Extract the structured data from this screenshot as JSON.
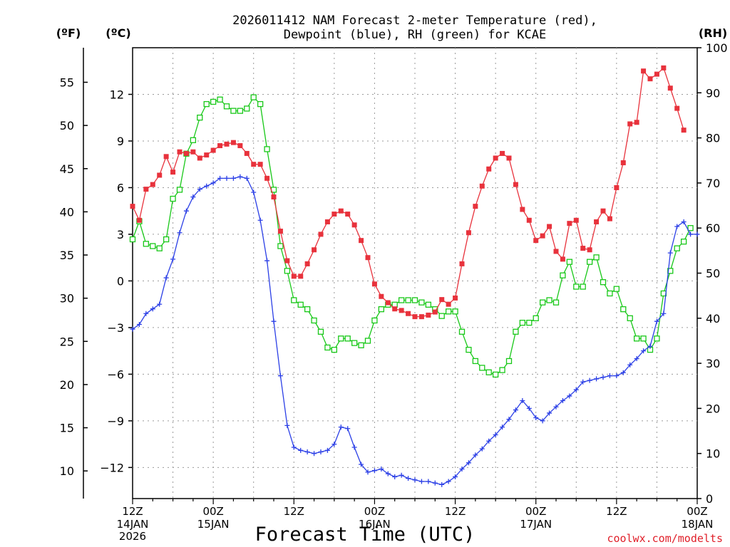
{
  "chart_data": {
    "type": "line",
    "title_line1": "2026011412 NAM Forecast 2-meter Temperature (red),",
    "title_line2": "Dewpoint (blue), RH (green) for KCAE",
    "xlabel": "Forecast Time (UTC)",
    "credit": "coolwx.com/modelts",
    "unit_left_f": "(ºF)",
    "unit_left_c": "(ºC)",
    "unit_right_rh": "(RH)",
    "xlim": [
      0,
      84
    ],
    "ylim_c": [
      -14,
      15
    ],
    "ylim_f": [
      6.8,
      59
    ],
    "ylim_rh": [
      0,
      100
    ],
    "x_ticks": [
      {
        "x": 0,
        "time": "12Z",
        "day": "14JAN",
        "year": "2026"
      },
      {
        "x": 12,
        "time": "00Z",
        "day": "15JAN",
        "year": ""
      },
      {
        "x": 24,
        "time": "12Z",
        "day": "",
        "year": ""
      },
      {
        "x": 36,
        "time": "00Z",
        "day": "16JAN",
        "year": ""
      },
      {
        "x": 48,
        "time": "12Z",
        "day": "",
        "year": ""
      },
      {
        "x": 60,
        "time": "00Z",
        "day": "17JAN",
        "year": ""
      },
      {
        "x": 72,
        "time": "12Z",
        "day": "",
        "year": ""
      },
      {
        "x": 84,
        "time": "00Z",
        "day": "18JAN",
        "year": ""
      }
    ],
    "c_ticks": [
      12,
      9,
      6,
      3,
      0,
      -3,
      -6,
      -9,
      -12
    ],
    "c_tick_labels": [
      "12",
      "9",
      "6",
      "3",
      "0",
      "−3",
      "−6",
      "−9",
      "−12"
    ],
    "f_ticks": [
      55,
      50,
      45,
      40,
      35,
      30,
      25,
      20,
      15,
      10
    ],
    "f_tick_labels": [
      "55",
      "50",
      "45",
      "40",
      "35",
      "30",
      "25",
      "20",
      "15",
      "10"
    ],
    "rh_ticks": [
      100,
      90,
      80,
      70,
      60,
      50,
      40,
      30,
      20,
      10,
      0
    ],
    "rh_tick_labels": [
      "100",
      "90",
      "80",
      "70",
      "60",
      "50",
      "40",
      "30",
      "20",
      "10",
      "0"
    ],
    "colors": {
      "temperature": "#e8323c",
      "dewpoint": "#2b3fe6",
      "rh": "#18c818",
      "grid": "#9a9a9a",
      "axis": "#000000"
    },
    "series": [
      {
        "name": "Temperature (°C)",
        "axis": "c",
        "marker": "filled-square",
        "points": [
          [
            0,
            4.8
          ],
          [
            1,
            3.9
          ],
          [
            2,
            5.9
          ],
          [
            3,
            6.2
          ],
          [
            4,
            6.8
          ],
          [
            5,
            8.0
          ],
          [
            6,
            7.0
          ],
          [
            7,
            8.3
          ],
          [
            8,
            8.2
          ],
          [
            9,
            8.3
          ],
          [
            10,
            7.9
          ],
          [
            11,
            8.1
          ],
          [
            12,
            8.4
          ],
          [
            13,
            8.7
          ],
          [
            14,
            8.8
          ],
          [
            15,
            8.9
          ],
          [
            16,
            8.7
          ],
          [
            17,
            8.2
          ],
          [
            18,
            7.5
          ],
          [
            19,
            7.5
          ],
          [
            20,
            6.6
          ],
          [
            21,
            5.4
          ],
          [
            22,
            3.2
          ],
          [
            23,
            1.3
          ],
          [
            24,
            0.3
          ],
          [
            25,
            0.3
          ],
          [
            26,
            1.1
          ],
          [
            27,
            2.0
          ],
          [
            28,
            3.0
          ],
          [
            29,
            3.8
          ],
          [
            30,
            4.3
          ],
          [
            31,
            4.5
          ],
          [
            32,
            4.3
          ],
          [
            33,
            3.6
          ],
          [
            34,
            2.6
          ],
          [
            35,
            1.5
          ],
          [
            36,
            -0.2
          ],
          [
            37,
            -1.0
          ],
          [
            38,
            -1.4
          ],
          [
            39,
            -1.8
          ],
          [
            40,
            -1.9
          ],
          [
            41,
            -2.1
          ],
          [
            42,
            -2.3
          ],
          [
            43,
            -2.3
          ],
          [
            44,
            -2.2
          ],
          [
            45,
            -2.0
          ],
          [
            46,
            -1.2
          ],
          [
            47,
            -1.5
          ],
          [
            48,
            -1.1
          ],
          [
            49,
            1.1
          ],
          [
            50,
            3.1
          ],
          [
            51,
            4.8
          ],
          [
            52,
            6.1
          ],
          [
            53,
            7.2
          ],
          [
            54,
            7.9
          ],
          [
            55,
            8.2
          ],
          [
            56,
            7.9
          ],
          [
            57,
            6.2
          ],
          [
            58,
            4.6
          ],
          [
            59,
            3.9
          ],
          [
            60,
            2.6
          ],
          [
            61,
            2.9
          ],
          [
            62,
            3.5
          ],
          [
            63,
            1.9
          ],
          [
            64,
            1.4
          ],
          [
            65,
            3.7
          ],
          [
            66,
            3.9
          ],
          [
            67,
            2.1
          ],
          [
            68,
            2.0
          ],
          [
            69,
            3.8
          ],
          [
            70,
            4.5
          ],
          [
            71,
            4.0
          ],
          [
            72,
            6.0
          ],
          [
            73,
            7.6
          ],
          [
            74,
            10.1
          ],
          [
            75,
            10.2
          ],
          [
            76,
            13.5
          ],
          [
            77,
            13.0
          ],
          [
            78,
            13.3
          ],
          [
            79,
            13.7
          ],
          [
            80,
            12.4
          ],
          [
            81,
            11.1
          ],
          [
            82,
            9.7
          ]
        ]
      },
      {
        "name": "Dewpoint (°C)",
        "axis": "c",
        "marker": "plus",
        "points": [
          [
            0,
            -3.1
          ],
          [
            1,
            -2.8
          ],
          [
            2,
            -2.1
          ],
          [
            3,
            -1.8
          ],
          [
            4,
            -1.5
          ],
          [
            5,
            0.2
          ],
          [
            6,
            1.4
          ],
          [
            7,
            3.1
          ],
          [
            8,
            4.5
          ],
          [
            9,
            5.4
          ],
          [
            10,
            5.9
          ],
          [
            11,
            6.1
          ],
          [
            12,
            6.3
          ],
          [
            13,
            6.6
          ],
          [
            14,
            6.6
          ],
          [
            15,
            6.6
          ],
          [
            16,
            6.7
          ],
          [
            17,
            6.6
          ],
          [
            18,
            5.7
          ],
          [
            19,
            3.9
          ],
          [
            20,
            1.3
          ],
          [
            21,
            -2.6
          ],
          [
            22,
            -6.1
          ],
          [
            23,
            -9.3
          ],
          [
            24,
            -10.7
          ],
          [
            25,
            -10.9
          ],
          [
            26,
            -11.0
          ],
          [
            27,
            -11.1
          ],
          [
            28,
            -11.0
          ],
          [
            29,
            -10.9
          ],
          [
            30,
            -10.5
          ],
          [
            31,
            -9.4
          ],
          [
            32,
            -9.5
          ],
          [
            33,
            -10.7
          ],
          [
            34,
            -11.8
          ],
          [
            35,
            -12.3
          ],
          [
            36,
            -12.2
          ],
          [
            37,
            -12.1
          ],
          [
            38,
            -12.4
          ],
          [
            39,
            -12.6
          ],
          [
            40,
            -12.5
          ],
          [
            41,
            -12.7
          ],
          [
            42,
            -12.8
          ],
          [
            43,
            -12.9
          ],
          [
            44,
            -12.9
          ],
          [
            45,
            -13.0
          ],
          [
            46,
            -13.1
          ],
          [
            47,
            -12.9
          ],
          [
            48,
            -12.6
          ],
          [
            49,
            -12.1
          ],
          [
            50,
            -11.7
          ],
          [
            51,
            -11.2
          ],
          [
            52,
            -10.8
          ],
          [
            53,
            -10.3
          ],
          [
            54,
            -9.9
          ],
          [
            55,
            -9.4
          ],
          [
            56,
            -8.9
          ],
          [
            57,
            -8.3
          ],
          [
            58,
            -7.7
          ],
          [
            59,
            -8.2
          ],
          [
            60,
            -8.8
          ],
          [
            61,
            -9.0
          ],
          [
            62,
            -8.5
          ],
          [
            63,
            -8.1
          ],
          [
            64,
            -7.7
          ],
          [
            65,
            -7.4
          ],
          [
            66,
            -7.0
          ],
          [
            67,
            -6.5
          ],
          [
            68,
            -6.4
          ],
          [
            69,
            -6.3
          ],
          [
            70,
            -6.2
          ],
          [
            71,
            -6.1
          ],
          [
            72,
            -6.1
          ],
          [
            73,
            -5.9
          ],
          [
            74,
            -5.4
          ],
          [
            75,
            -5.0
          ],
          [
            76,
            -4.5
          ],
          [
            77,
            -4.2
          ],
          [
            78,
            -2.6
          ],
          [
            79,
            -2.1
          ],
          [
            80,
            1.8
          ],
          [
            81,
            3.5
          ],
          [
            82,
            3.8
          ],
          [
            83,
            3.0
          ],
          [
            84,
            3.0
          ]
        ]
      },
      {
        "name": "RH (%)",
        "axis": "rh",
        "marker": "open-square",
        "points": [
          [
            0,
            57.5
          ],
          [
            1,
            61.5
          ],
          [
            2,
            56.5
          ],
          [
            3,
            56.0
          ],
          [
            4,
            55.5
          ],
          [
            5,
            57.5
          ],
          [
            6,
            66.5
          ],
          [
            7,
            68.5
          ],
          [
            8,
            76.5
          ],
          [
            9,
            79.5
          ],
          [
            10,
            84.5
          ],
          [
            11,
            87.5
          ],
          [
            12,
            88.0
          ],
          [
            13,
            88.5
          ],
          [
            14,
            87.0
          ],
          [
            15,
            86.0
          ],
          [
            16,
            86.0
          ],
          [
            17,
            86.5
          ],
          [
            18,
            89.0
          ],
          [
            19,
            87.5
          ],
          [
            20,
            77.5
          ],
          [
            21,
            68.5
          ],
          [
            22,
            56.0
          ],
          [
            23,
            50.5
          ],
          [
            24,
            44.0
          ],
          [
            25,
            43.0
          ],
          [
            26,
            42.0
          ],
          [
            27,
            39.5
          ],
          [
            28,
            37.0
          ],
          [
            29,
            33.5
          ],
          [
            30,
            33.0
          ],
          [
            31,
            35.5
          ],
          [
            32,
            35.5
          ],
          [
            33,
            34.5
          ],
          [
            34,
            34.0
          ],
          [
            35,
            35.0
          ],
          [
            36,
            39.5
          ],
          [
            37,
            42.0
          ],
          [
            38,
            43.0
          ],
          [
            39,
            43.0
          ],
          [
            40,
            44.0
          ],
          [
            41,
            44.0
          ],
          [
            42,
            44.0
          ],
          [
            43,
            43.5
          ],
          [
            44,
            43.0
          ],
          [
            45,
            42.0
          ],
          [
            46,
            40.5
          ],
          [
            47,
            41.5
          ],
          [
            48,
            41.5
          ],
          [
            49,
            37.0
          ],
          [
            50,
            33.0
          ],
          [
            51,
            30.5
          ],
          [
            52,
            29.0
          ],
          [
            53,
            28.0
          ],
          [
            54,
            27.5
          ],
          [
            55,
            28.5
          ],
          [
            56,
            30.5
          ],
          [
            57,
            37.0
          ],
          [
            58,
            39.0
          ],
          [
            59,
            39.0
          ],
          [
            60,
            40.0
          ],
          [
            61,
            43.5
          ],
          [
            62,
            44.0
          ],
          [
            63,
            43.5
          ],
          [
            64,
            49.5
          ],
          [
            65,
            52.5
          ],
          [
            66,
            47.0
          ],
          [
            67,
            47.0
          ],
          [
            68,
            52.5
          ],
          [
            69,
            53.5
          ],
          [
            70,
            48.0
          ],
          [
            71,
            45.5
          ],
          [
            72,
            46.5
          ],
          [
            73,
            42.0
          ],
          [
            74,
            40.0
          ],
          [
            75,
            35.5
          ],
          [
            76,
            35.5
          ],
          [
            77,
            33.0
          ],
          [
            78,
            35.5
          ],
          [
            79,
            45.5
          ],
          [
            80,
            50.5
          ],
          [
            81,
            55.5
          ],
          [
            82,
            57.0
          ],
          [
            83,
            60.0
          ]
        ]
      }
    ]
  }
}
